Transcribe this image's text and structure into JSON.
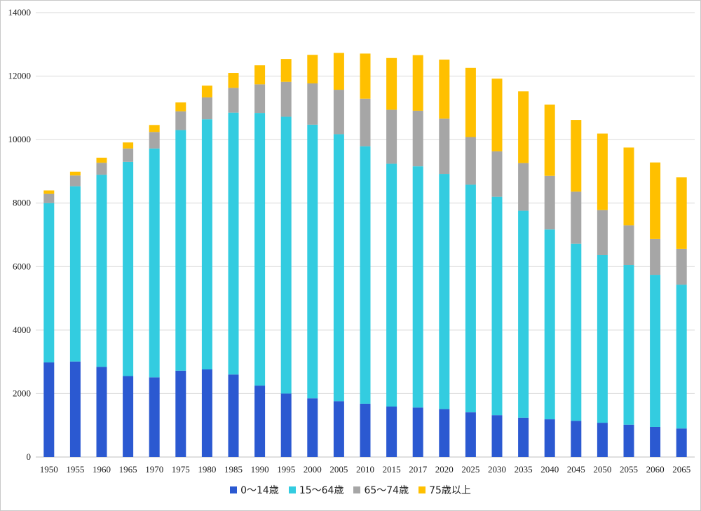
{
  "chart_data": {
    "type": "bar",
    "stacked": true,
    "title": "",
    "xlabel": "",
    "ylabel": "",
    "ylim": [
      0,
      14000
    ],
    "yticks": [
      0,
      2000,
      4000,
      6000,
      8000,
      10000,
      12000,
      14000
    ],
    "grid": true,
    "legend_position": "bottom",
    "categories": [
      "1950",
      "1955",
      "1960",
      "1965",
      "1970",
      "1975",
      "1980",
      "1985",
      "1990",
      "1995",
      "2000",
      "2005",
      "2010",
      "2015",
      "2017",
      "2020",
      "2025",
      "2030",
      "2035",
      "2040",
      "2045",
      "2050",
      "2055",
      "2060",
      "2065"
    ],
    "series": [
      {
        "name": "0～14歳",
        "color": "#2b59d1",
        "values": [
          2980,
          3010,
          2840,
          2550,
          2510,
          2720,
          2760,
          2600,
          2250,
          2000,
          1850,
          1760,
          1680,
          1590,
          1560,
          1510,
          1410,
          1320,
          1240,
          1190,
          1140,
          1080,
          1020,
          950,
          900
        ]
      },
      {
        "name": "15～64歳",
        "color": "#33cce0",
        "values": [
          5020,
          5520,
          6050,
          6750,
          7210,
          7580,
          7880,
          8250,
          8590,
          8720,
          8620,
          8410,
          8110,
          7650,
          7600,
          7410,
          7170,
          6880,
          6520,
          5980,
          5580,
          5280,
          5030,
          4790,
          4530
        ]
      },
      {
        "name": "65～74歳",
        "color": "#a6a6a6",
        "values": [
          290,
          340,
          380,
          420,
          520,
          590,
          690,
          780,
          900,
          1100,
          1300,
          1400,
          1500,
          1700,
          1750,
          1740,
          1500,
          1430,
          1500,
          1690,
          1640,
          1420,
          1250,
          1130,
          1130
        ]
      },
      {
        "name": "75歳以上",
        "color": "#ffc000",
        "values": [
          110,
          120,
          160,
          190,
          220,
          280,
          370,
          470,
          600,
          720,
          900,
          1160,
          1420,
          1630,
          1750,
          1860,
          2180,
          2290,
          2260,
          2240,
          2260,
          2410,
          2450,
          2410,
          2250
        ]
      }
    ]
  }
}
